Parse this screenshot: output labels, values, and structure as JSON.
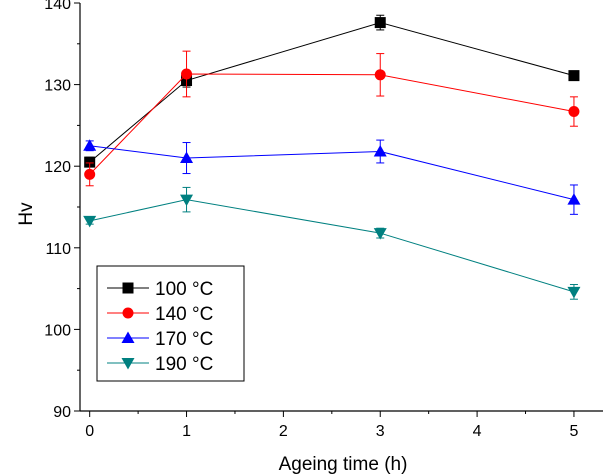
{
  "chart_data": {
    "type": "line",
    "title": "",
    "xlabel": "Ageing time (h)",
    "ylabel": "Hv",
    "xlim": [
      -0.1,
      5.3
    ],
    "ylim": [
      90,
      140
    ],
    "x_ticks": [
      "0",
      "1",
      "2",
      "3",
      "4",
      "5"
    ],
    "y_ticks": [
      "90",
      "100",
      "110",
      "120",
      "130",
      "140"
    ],
    "grid": false,
    "legend_position": "bottom-left",
    "series": [
      {
        "name": "100 °C",
        "color": "#000000",
        "marker": "square",
        "x": [
          0,
          1,
          3,
          5
        ],
        "values": [
          120.5,
          130.5,
          137.6,
          131.1
        ],
        "errors": [
          0.6,
          0.8,
          0.9,
          0.5
        ]
      },
      {
        "name": "140 °C",
        "color": "#ff0000",
        "marker": "circle",
        "x": [
          0,
          1,
          3,
          5
        ],
        "values": [
          119.0,
          131.3,
          131.2,
          126.7
        ],
        "errors": [
          1.4,
          2.8,
          2.6,
          1.8
        ]
      },
      {
        "name": "170 °C",
        "color": "#0000ff",
        "marker": "triangle-up",
        "x": [
          0,
          1,
          3,
          5
        ],
        "values": [
          122.5,
          121.0,
          121.8,
          115.9
        ],
        "errors": [
          0.6,
          1.9,
          1.4,
          1.8
        ]
      },
      {
        "name": "190 °C",
        "color": "#008080",
        "marker": "triangle-down",
        "x": [
          0,
          1,
          3,
          5
        ],
        "values": [
          113.3,
          115.9,
          111.8,
          104.6
        ],
        "errors": [
          0.4,
          1.5,
          0.6,
          0.9
        ]
      }
    ]
  }
}
